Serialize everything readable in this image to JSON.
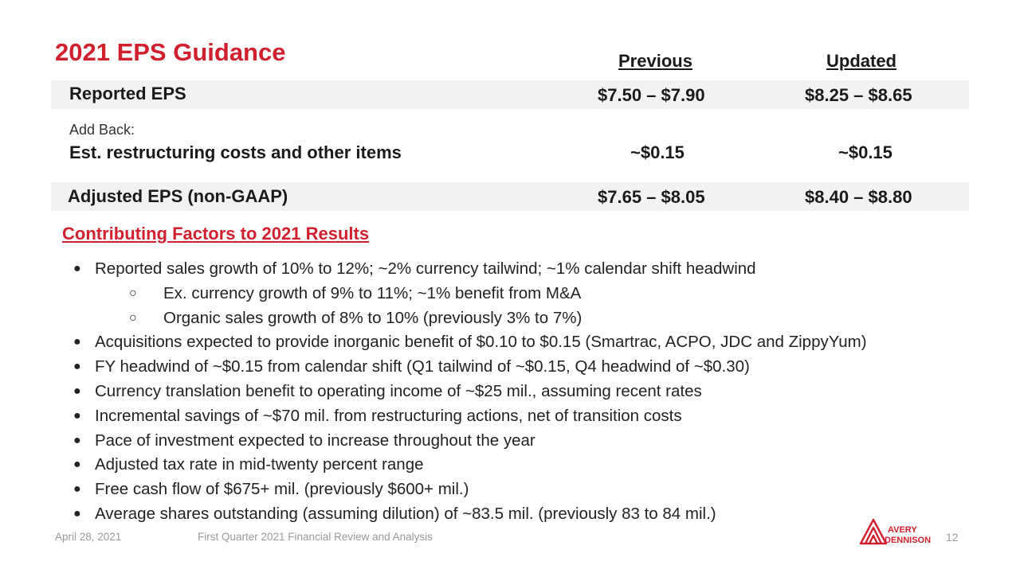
{
  "title": "2021 EPS Guidance",
  "table": {
    "col_previous": "Previous",
    "col_updated": "Updated",
    "rows": [
      {
        "label": "Reported EPS",
        "sublabel": "",
        "previous": "$7.50 – $7.90",
        "updated": "$8.25 – $8.65"
      },
      {
        "label": "Est. restructuring costs and other items",
        "sublabel": "Add Back:",
        "previous": "~$0.15",
        "updated": "~$0.15"
      },
      {
        "label": "Adjusted EPS (non-GAAP)",
        "sublabel": "",
        "previous": "$7.65 – $8.05",
        "updated": "$8.40 – $8.80"
      }
    ]
  },
  "factors": {
    "title": "Contributing Factors to 2021 Results",
    "items": [
      {
        "level": 1,
        "text": "Reported sales growth of 10% to 12%; ~2% currency tailwind; ~1% calendar shift headwind"
      },
      {
        "level": 2,
        "text": "Ex. currency growth of 9% to 11%; ~1% benefit from M&A"
      },
      {
        "level": 2,
        "text": "Organic sales growth of 8% to 10% (previously 3% to 7%)"
      },
      {
        "level": 1,
        "text": "Acquisitions expected to provide inorganic benefit of $0.10 to $0.15 (Smartrac, ACPO, JDC and ZippyYum)"
      },
      {
        "level": 1,
        "text": "FY headwind of ~$0.15 from calendar shift (Q1 tailwind of ~$0.15, Q4 headwind of ~$0.30)"
      },
      {
        "level": 1,
        "text": "Currency translation benefit to operating income of ~$25 mil., assuming recent rates"
      },
      {
        "level": 1,
        "text": "Incremental savings of ~$70 mil. from restructuring actions, net of transition costs"
      },
      {
        "level": 1,
        "text": "Pace of investment expected to increase throughout the year"
      },
      {
        "level": 1,
        "text": "Adjusted tax rate in mid-twenty percent range"
      },
      {
        "level": 1,
        "text": "Free cash flow of $675+ mil. (previously $600+ mil.)"
      },
      {
        "level": 1,
        "text": "Average shares outstanding (assuming dilution) of ~83.5 mil. (previously 83 to 84 mil.)"
      }
    ]
  },
  "footer": {
    "date": "April 28, 2021",
    "doc_title": "First Quarter 2021 Financial Review and Analysis",
    "page_number": "12",
    "logo_line1": "AVERY",
    "logo_line2": "DENNISON"
  },
  "colors": {
    "accent": "#d0202e",
    "band": "#f2f2f2"
  },
  "icons": {
    "bullet": "filled-circle-bullet",
    "sub_bullet": "hollow-circle-bullet"
  }
}
